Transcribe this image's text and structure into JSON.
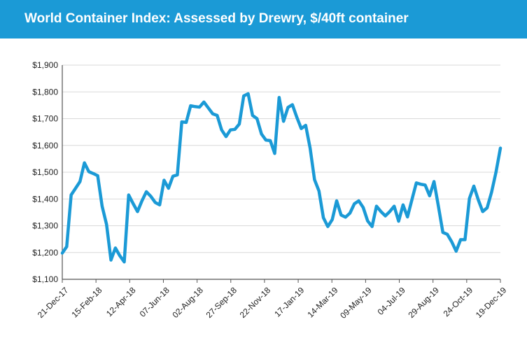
{
  "header": {
    "title": "World Container Index: Assessed by Drewry, $/40ft container",
    "background_color": "#1b9ad6"
  },
  "chart_data": {
    "type": "line",
    "title": "World Container Index: Assessed by Drewry, $/40ft container",
    "xlabel": "",
    "ylabel": "",
    "ylim": [
      1100,
      1900
    ],
    "y_ticks": [
      "$1,100",
      "$1,200",
      "$1,300",
      "$1,400",
      "$1,500",
      "$1,600",
      "$1,700",
      "$1,800",
      "$1,900"
    ],
    "x_ticks": [
      "21-Dec-17",
      "15-Feb-18",
      "12-Apr-18",
      "07-Jun-18",
      "02-Aug-18",
      "27-Sep-18",
      "22-Nov-18",
      "17-Jan-19",
      "14-Mar-19",
      "09-May-19",
      "04-Jul-19",
      "29-Aug-19",
      "24-Oct-19",
      "19-Dec-19"
    ],
    "grid": "horizontal",
    "line_color": "#1b9ad6",
    "series": [
      {
        "values": [
          1198,
          1222,
          1415,
          1440,
          1465,
          1535,
          1502,
          1495,
          1487,
          1373,
          1305,
          1172,
          1217,
          1188,
          1165,
          1415,
          1383,
          1353,
          1393,
          1427,
          1410,
          1387,
          1378,
          1470,
          1440,
          1485,
          1490,
          1688,
          1686,
          1748,
          1745,
          1743,
          1762,
          1740,
          1718,
          1712,
          1658,
          1633,
          1658,
          1660,
          1680,
          1785,
          1793,
          1712,
          1700,
          1643,
          1620,
          1618,
          1570,
          1779,
          1690,
          1742,
          1752,
          1705,
          1663,
          1675,
          1590,
          1472,
          1430,
          1330,
          1297,
          1323,
          1393,
          1340,
          1332,
          1347,
          1382,
          1393,
          1368,
          1318,
          1297,
          1373,
          1353,
          1337,
          1353,
          1373,
          1317,
          1378,
          1333,
          1397,
          1460,
          1455,
          1452,
          1412,
          1465,
          1372,
          1275,
          1268,
          1240,
          1205,
          1248,
          1248,
          1402,
          1448,
          1397,
          1353,
          1367,
          1425,
          1500,
          1590
        ]
      }
    ]
  }
}
